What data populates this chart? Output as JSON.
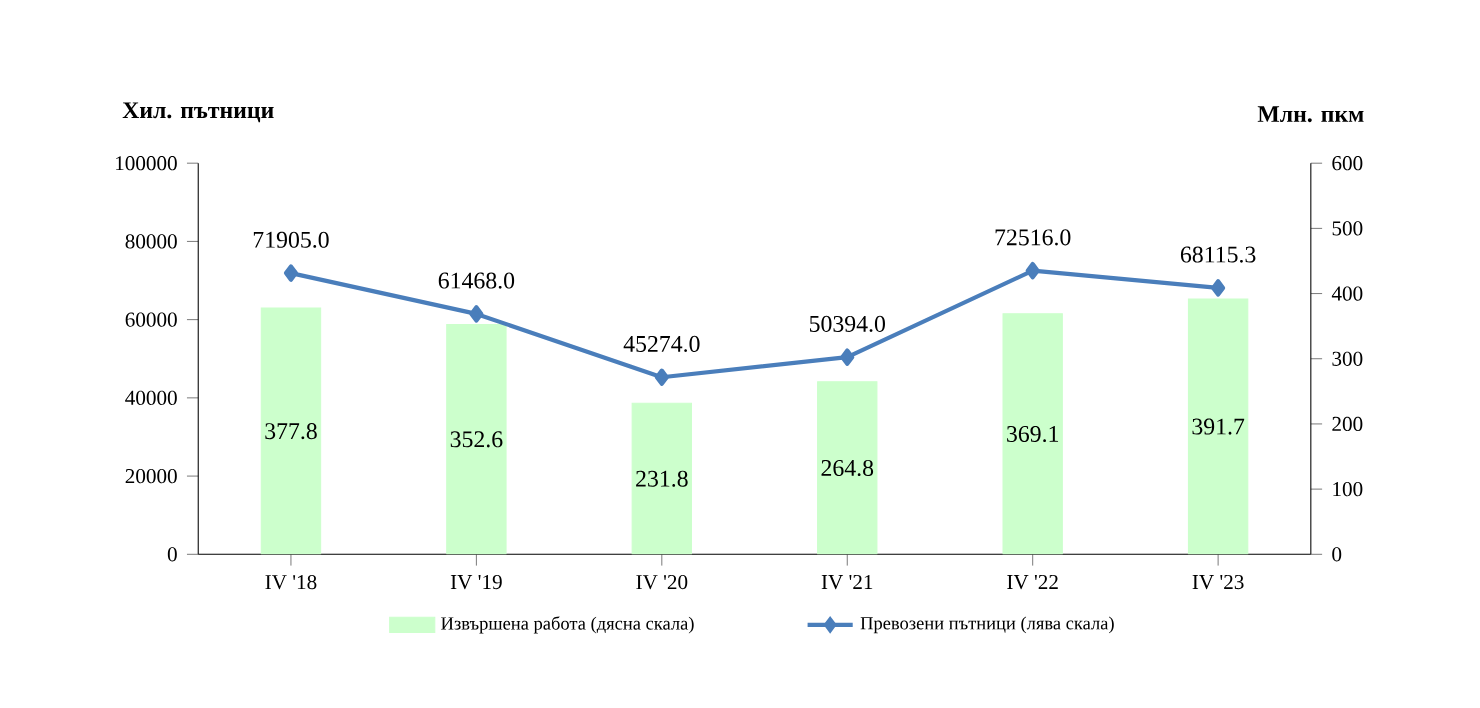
{
  "chart_data": {
    "type": "bar",
    "categories": [
      "IV '18",
      "IV '19",
      "IV '20",
      "IV '21",
      "IV '22",
      "IV '23"
    ],
    "ylabel": "Хил. пътници",
    "y2label": "Млн. пкм",
    "ylim": [
      0,
      100000
    ],
    "yticks": [
      0,
      20000,
      40000,
      60000,
      80000,
      100000
    ],
    "y2lim": [
      0,
      600
    ],
    "y2ticks": [
      0,
      100,
      200,
      300,
      400,
      500,
      600
    ],
    "legend": "bottom",
    "series": [
      {
        "name": "Извършена работа (дясна скала)",
        "axis": "y2",
        "color": "#ccffcc",
        "values": [
          377.8,
          352.6,
          231.8,
          264.8,
          369.1,
          391.7
        ],
        "value_labels": [
          "377.8",
          "352.6",
          "231.8",
          "264.8",
          "369.1",
          "391.7"
        ]
      },
      {
        "name": "Превозени пътници  (лява скала)",
        "type": "line",
        "axis": "y",
        "color": "#4a7ebb",
        "marker": "diamond",
        "line_style": "solid",
        "values": [
          71905.0,
          61468.0,
          45274.0,
          50394.0,
          72516.0,
          68115.3
        ],
        "value_labels": [
          "71905.0",
          "61468.0",
          "45274.0",
          "50394.0",
          "72516.0",
          "68115.3"
        ]
      }
    ]
  }
}
